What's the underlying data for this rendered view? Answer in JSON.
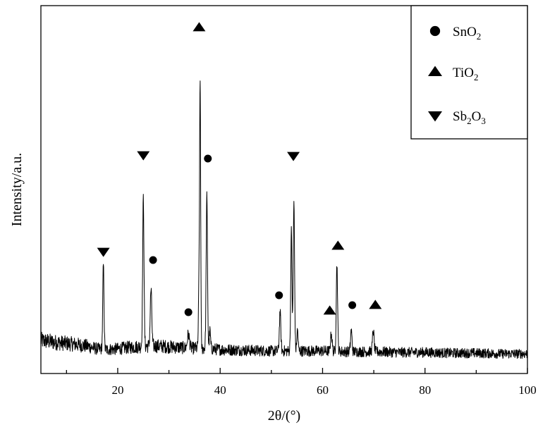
{
  "chart_data": {
    "type": "line",
    "xlabel": "2θ/(°)",
    "ylabel": "Intensity/a.u.",
    "xlim": [
      5,
      100
    ],
    "xticks": [
      20,
      40,
      60,
      80,
      100
    ],
    "xtick_labels": [
      "20",
      "40",
      "60",
      "80",
      "100"
    ],
    "yticks": [],
    "y_unit": "a.u.",
    "legend": {
      "position": "top-right",
      "entries": [
        {
          "marker": "circle",
          "label_base": "SnO",
          "label_sub1": "2",
          "label_mid": "",
          "label_sub2": ""
        },
        {
          "marker": "triangle-up",
          "label_base": "TiO",
          "label_sub1": "2",
          "label_mid": "",
          "label_sub2": ""
        },
        {
          "marker": "triangle-down",
          "label_base": "Sb",
          "label_sub1": "2",
          "label_mid": "O",
          "label_sub2": "3"
        }
      ]
    },
    "background": [
      [
        5,
        22
      ],
      [
        8,
        19
      ],
      [
        11,
        17
      ],
      [
        14,
        14
      ],
      [
        16,
        10
      ],
      [
        18,
        9
      ],
      [
        20,
        10
      ],
      [
        22,
        12
      ],
      [
        24,
        13
      ],
      [
        26,
        14
      ],
      [
        28,
        14
      ],
      [
        30,
        13
      ],
      [
        32,
        12
      ],
      [
        34,
        11
      ],
      [
        36,
        11
      ],
      [
        38,
        10
      ],
      [
        40,
        9
      ],
      [
        45,
        8
      ],
      [
        50,
        7
      ],
      [
        55,
        7
      ],
      [
        60,
        7
      ],
      [
        65,
        6
      ],
      [
        70,
        6
      ],
      [
        75,
        5
      ],
      [
        80,
        5
      ],
      [
        85,
        4
      ],
      [
        90,
        4
      ],
      [
        95,
        3
      ],
      [
        100,
        3
      ]
    ],
    "peaks": [
      {
        "x": 17.2,
        "height": 120,
        "width": 0.12
      },
      {
        "x": 25.0,
        "height": 210,
        "width": 0.13
      },
      {
        "x": 26.5,
        "height": 80,
        "width": 0.15
      },
      {
        "x": 33.8,
        "height": 20,
        "width": 0.2
      },
      {
        "x": 35.9,
        "height": 100,
        "width": 0.12
      },
      {
        "x": 36.1,
        "height": 355,
        "width": 0.1
      },
      {
        "x": 37.4,
        "height": 215,
        "width": 0.13
      },
      {
        "x": 38.0,
        "height": 25,
        "width": 0.12
      },
      {
        "x": 51.7,
        "height": 55,
        "width": 0.14
      },
      {
        "x": 53.9,
        "height": 170,
        "width": 0.12
      },
      {
        "x": 54.4,
        "height": 210,
        "width": 0.13
      },
      {
        "x": 55.1,
        "height": 30,
        "width": 0.12
      },
      {
        "x": 61.7,
        "height": 25,
        "width": 0.15
      },
      {
        "x": 62.8,
        "height": 125,
        "width": 0.13
      },
      {
        "x": 65.6,
        "height": 30,
        "width": 0.14
      },
      {
        "x": 69.9,
        "height": 30,
        "width": 0.15
      }
    ],
    "peak_markers": [
      {
        "x": 17.2,
        "height": 148,
        "marker": "triangle-down"
      },
      {
        "x": 25.0,
        "height": 285,
        "marker": "triangle-down"
      },
      {
        "x": 26.9,
        "height": 136,
        "marker": "circle"
      },
      {
        "x": 33.8,
        "height": 62,
        "marker": "circle"
      },
      {
        "x": 35.9,
        "height": 466,
        "marker": "triangle-up"
      },
      {
        "x": 37.6,
        "height": 280,
        "marker": "circle"
      },
      {
        "x": 51.5,
        "height": 86,
        "marker": "circle"
      },
      {
        "x": 54.3,
        "height": 284,
        "marker": "triangle-down"
      },
      {
        "x": 61.4,
        "height": 64,
        "marker": "triangle-up"
      },
      {
        "x": 63.0,
        "height": 156,
        "marker": "triangle-up"
      },
      {
        "x": 65.8,
        "height": 72,
        "marker": "circle"
      },
      {
        "x": 70.3,
        "height": 72,
        "marker": "triangle-up"
      }
    ]
  }
}
